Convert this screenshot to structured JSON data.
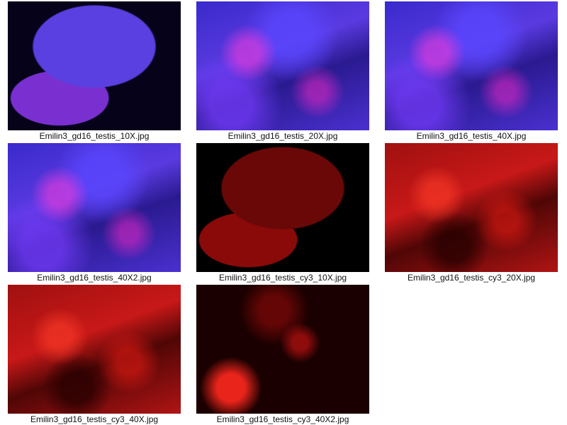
{
  "gallery": {
    "items": [
      {
        "caption": "Emilin3_gd16_testis_10X.jpg",
        "style": "merge10"
      },
      {
        "caption": "Emilin3_gd16_testis_20X.jpg",
        "style": "merge"
      },
      {
        "caption": "Emilin3_gd16_testis_40X.jpg",
        "style": "merge"
      },
      {
        "caption": "Emilin3_gd16_testis_40X2.jpg",
        "style": "merge"
      },
      {
        "caption": "Emilin3_gd16_testis_cy3_10X.jpg",
        "style": "red10"
      },
      {
        "caption": "Emilin3_gd16_testis_cy3_20X.jpg",
        "style": "red"
      },
      {
        "caption": "Emilin3_gd16_testis_cy3_40X.jpg",
        "style": "red"
      },
      {
        "caption": "Emilin3_gd16_testis_cy3_40X2.jpg",
        "style": "reddark"
      }
    ]
  }
}
